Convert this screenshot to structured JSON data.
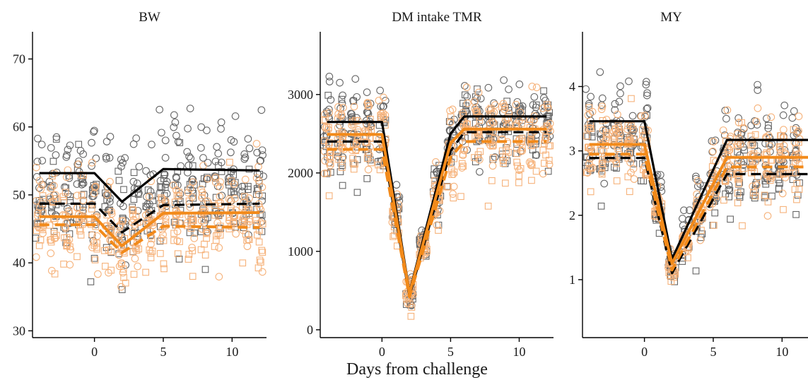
{
  "figure": {
    "xlabel": "Days from challenge"
  },
  "colors": {
    "black_series": "#000000",
    "orange_series": "#f28a1a",
    "black_points": "#666666",
    "orange_points": "#f6b27a"
  },
  "chart_data": [
    {
      "type": "scatter",
      "title": "BW",
      "xlabel": "",
      "ylabel": "",
      "xlim": [
        -4.5,
        12.5
      ],
      "ylim": [
        29,
        74
      ],
      "xticks": [
        0,
        5,
        10
      ],
      "yticks": [
        30,
        40,
        50,
        60,
        70
      ],
      "series": [
        {
          "style": "black-solid",
          "x": [
            -4,
            0,
            2,
            5,
            12
          ],
          "y": [
            53.2,
            53.2,
            49.0,
            53.8,
            53.6
          ]
        },
        {
          "style": "black-dashed",
          "x": [
            -4,
            0,
            2,
            5,
            12
          ],
          "y": [
            48.7,
            48.7,
            44.5,
            48.5,
            48.7
          ]
        },
        {
          "style": "orange-solid",
          "x": [
            -4,
            0,
            2,
            5,
            12
          ],
          "y": [
            46.8,
            46.8,
            42.5,
            47.3,
            47.4
          ]
        },
        {
          "style": "orange-dashed",
          "x": [
            -4,
            0,
            2,
            5,
            12
          ],
          "y": [
            45.6,
            45.6,
            41.5,
            45.4,
            45.2
          ]
        }
      ],
      "scatter_clouds": [
        {
          "group": "black-circle",
          "center": 53,
          "spread": 7.5
        },
        {
          "group": "black-square",
          "center": 48.5,
          "spread": 6
        },
        {
          "group": "orange-circle",
          "center": 46.5,
          "spread": 6
        },
        {
          "group": "orange-square",
          "center": 45,
          "spread": 5.5
        }
      ]
    },
    {
      "type": "scatter",
      "title": "DM intake TMR",
      "xlabel": "",
      "ylabel": "",
      "xlim": [
        -4.5,
        12.5
      ],
      "ylim": [
        -100,
        3800
      ],
      "xticks": [
        0,
        5,
        10
      ],
      "yticks": [
        0,
        1000,
        2000,
        3000
      ],
      "series": [
        {
          "style": "black-solid",
          "x": [
            -4,
            0,
            2,
            5,
            6,
            12
          ],
          "y": [
            2650,
            2650,
            480,
            2500,
            2720,
            2720
          ]
        },
        {
          "style": "black-dashed",
          "x": [
            -4,
            0,
            2,
            5,
            6,
            12
          ],
          "y": [
            2400,
            2400,
            430,
            2280,
            2520,
            2520
          ]
        },
        {
          "style": "orange-solid",
          "x": [
            -4,
            0,
            2,
            5,
            6,
            12
          ],
          "y": [
            2490,
            2490,
            460,
            2380,
            2560,
            2560
          ]
        },
        {
          "style": "orange-dashed",
          "x": [
            -4,
            0,
            2,
            5,
            6,
            12
          ],
          "y": [
            2300,
            2300,
            420,
            2200,
            2400,
            2400
          ]
        }
      ],
      "scatter_clouds": [
        {
          "group": "black-circle",
          "center": 2700,
          "spread": 450
        },
        {
          "group": "black-square",
          "center": 2450,
          "spread": 450
        },
        {
          "group": "orange-circle",
          "center": 2550,
          "spread": 450
        },
        {
          "group": "orange-square",
          "center": 2350,
          "spread": 450
        }
      ]
    },
    {
      "type": "scatter",
      "title": "MY",
      "xlabel": "",
      "ylabel": "",
      "xlim": [
        -4.5,
        12.5
      ],
      "ylim": [
        0.1,
        4.85
      ],
      "xticks": [
        0,
        5,
        10
      ],
      "yticks": [
        1,
        2,
        3,
        4
      ],
      "series": [
        {
          "style": "black-solid",
          "x": [
            -4,
            0,
            2,
            6,
            12
          ],
          "y": [
            3.46,
            3.46,
            1.32,
            3.17,
            3.17
          ]
        },
        {
          "style": "black-dashed",
          "x": [
            -4,
            0,
            2,
            6,
            12
          ],
          "y": [
            2.89,
            2.89,
            1.1,
            2.64,
            2.64
          ]
        },
        {
          "style": "orange-solid",
          "x": [
            -4,
            0,
            2,
            6,
            12
          ],
          "y": [
            3.1,
            3.1,
            1.25,
            2.9,
            2.9
          ]
        },
        {
          "style": "orange-dashed",
          "x": [
            -4,
            0,
            2,
            6,
            12
          ],
          "y": [
            2.95,
            2.95,
            1.15,
            2.75,
            2.75
          ]
        }
      ],
      "scatter_clouds": [
        {
          "group": "black-circle",
          "center": 3.4,
          "spread": 0.6
        },
        {
          "group": "black-square",
          "center": 2.9,
          "spread": 0.55
        },
        {
          "group": "orange-circle",
          "center": 3.05,
          "spread": 0.55
        },
        {
          "group": "orange-square",
          "center": 2.85,
          "spread": 0.5
        }
      ]
    }
  ]
}
